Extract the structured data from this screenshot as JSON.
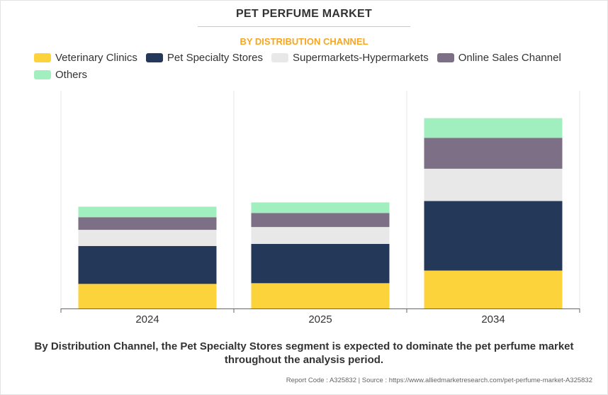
{
  "chart_data": {
    "type": "bar",
    "stacked": true,
    "title": "PET PERFUME MARKET",
    "subtitle": "BY DISTRIBUTION CHANNEL",
    "categories": [
      "2024",
      "2025",
      "2034"
    ],
    "series": [
      {
        "name": "Veterinary Clinics",
        "color": "#fdd33b",
        "values": [
          35,
          36,
          54
        ]
      },
      {
        "name": "Pet Specialty Stores",
        "color": "#24385a",
        "values": [
          54,
          56,
          99
        ]
      },
      {
        "name": "Supermarkets-Hypermarkets",
        "color": "#e8e8e8",
        "values": [
          23,
          24,
          46
        ]
      },
      {
        "name": "Online Sales Channel",
        "color": "#7d6f86",
        "values": [
          18,
          20,
          44
        ]
      },
      {
        "name": "Others",
        "color": "#a1efbf",
        "values": [
          15,
          15,
          28
        ]
      }
    ],
    "ylim": [
      0,
      310
    ],
    "grid": false,
    "legend": "top-left"
  },
  "footer": {
    "statement": "By Distribution Channel, the Pet Specialty Stores segment is expected to dominate the pet perfume market throughout the analysis period.",
    "source": "Report Code : A325832  |  Source : https://www.alliedmarketresearch.com/pet-perfume-market-A325832"
  }
}
